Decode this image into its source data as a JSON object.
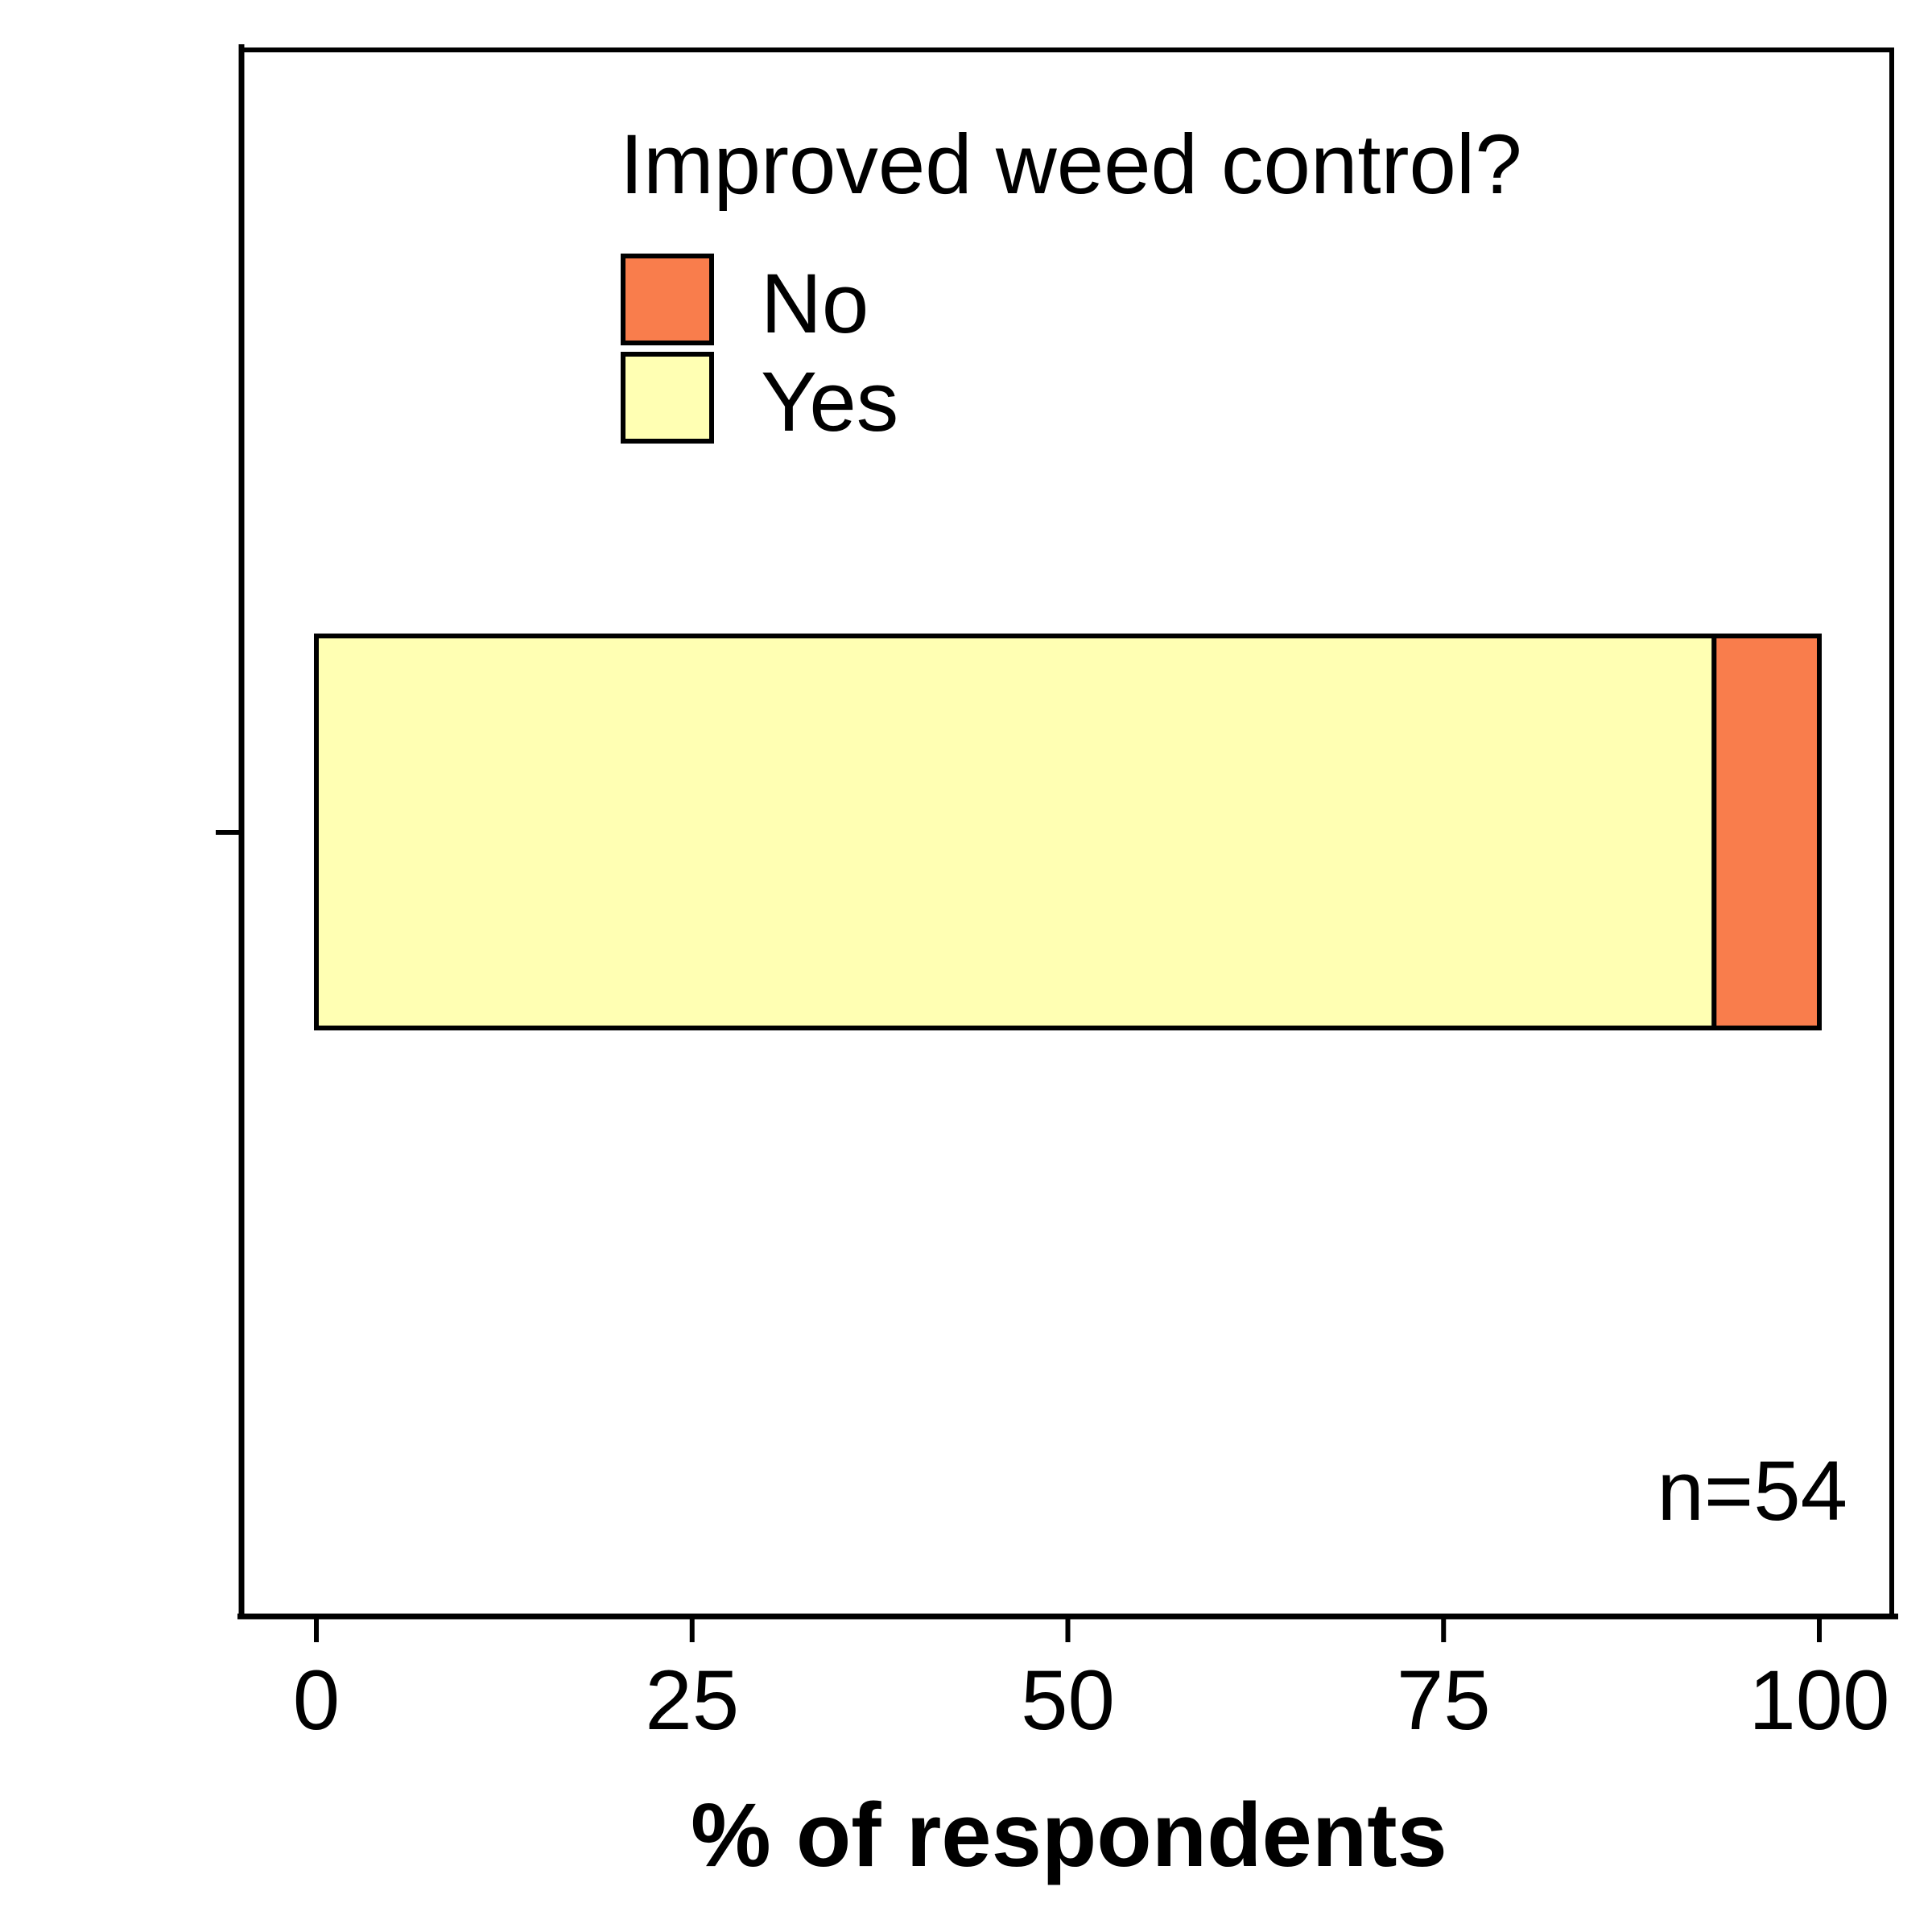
{
  "chart_data": {
    "type": "bar",
    "orientation": "horizontal",
    "stacked": true,
    "categories": [
      ""
    ],
    "series": [
      {
        "name": "Yes",
        "values": [
          93
        ],
        "color": "#FFFFB3"
      },
      {
        "name": "No",
        "values": [
          7
        ],
        "color": "#F97D4C"
      }
    ],
    "xlabel": "% of respondents",
    "ylabel": "",
    "xlim": [
      0,
      100
    ],
    "xticks": [
      0,
      25,
      50,
      75,
      100
    ],
    "legend": {
      "title": "Improved weed control?",
      "placement": "top-center",
      "entries": [
        {
          "name": "No",
          "color": "#F97D4C"
        },
        {
          "name": "Yes",
          "color": "#FFFFB3"
        }
      ]
    },
    "annotation": "n=54",
    "grid": false
  }
}
